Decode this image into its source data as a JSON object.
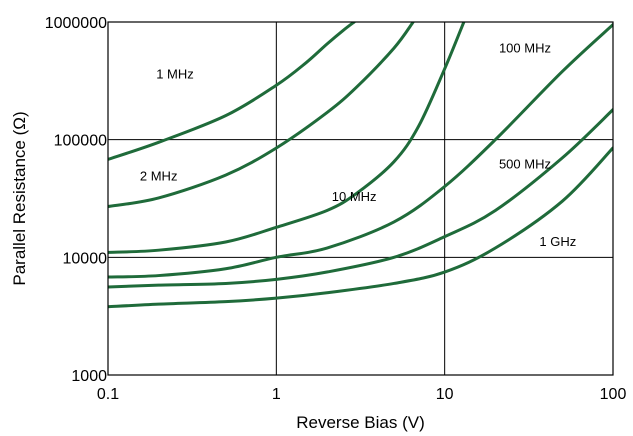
{
  "chart_data": {
    "type": "line",
    "x_scale": "log",
    "y_scale": "log",
    "xlabel": "Reverse Bias (V)",
    "ylabel": "Parallel Resistance (Ω)",
    "xlim": [
      0.1,
      100
    ],
    "ylim": [
      1000,
      1000000
    ],
    "grid": true,
    "line_color": "#1f6b3a",
    "x_ticks": [
      {
        "value": 0.1,
        "label": "0.1"
      },
      {
        "value": 1,
        "label": "1"
      },
      {
        "value": 10,
        "label": "10"
      },
      {
        "value": 100,
        "label": "100"
      }
    ],
    "y_ticks": [
      {
        "value": 1000,
        "label": "1000"
      },
      {
        "value": 10000,
        "label": "10000"
      },
      {
        "value": 100000,
        "label": "100000"
      },
      {
        "value": 1000000,
        "label": "1000000"
      }
    ],
    "series": [
      {
        "name": "1 MHz",
        "label_at": {
          "x": 0.25,
          "y": 330000
        },
        "points": [
          [
            0.1,
            68000
          ],
          [
            0.2,
            95000
          ],
          [
            0.5,
            160000
          ],
          [
            1,
            290000
          ],
          [
            1.5,
            450000
          ],
          [
            2,
            650000
          ],
          [
            2.5,
            850000
          ],
          [
            2.9,
            1000000
          ]
        ]
      },
      {
        "name": "2 MHz",
        "label_at": {
          "x": 0.2,
          "y": 45000
        },
        "points": [
          [
            0.1,
            27000
          ],
          [
            0.2,
            32000
          ],
          [
            0.5,
            50000
          ],
          [
            1,
            85000
          ],
          [
            2,
            170000
          ],
          [
            3,
            280000
          ],
          [
            5,
            600000
          ],
          [
            6.5,
            1000000
          ]
        ]
      },
      {
        "name": "10 MHz",
        "label_at": {
          "x": 2.9,
          "y": 30000
        },
        "points": [
          [
            0.1,
            11000
          ],
          [
            0.2,
            11500
          ],
          [
            0.5,
            13500
          ],
          [
            1,
            18000
          ],
          [
            2,
            25000
          ],
          [
            3,
            35000
          ],
          [
            5,
            65000
          ],
          [
            7,
            130000
          ],
          [
            10,
            400000
          ],
          [
            13,
            1000000
          ]
        ]
      },
      {
        "name": "100 MHz",
        "label_at": {
          "x": 30,
          "y": 550000
        },
        "points": [
          [
            0.1,
            6800
          ],
          [
            0.2,
            7000
          ],
          [
            0.5,
            8000
          ],
          [
            1,
            10000
          ],
          [
            2,
            12000
          ],
          [
            5,
            20000
          ],
          [
            10,
            40000
          ],
          [
            20,
            100000
          ],
          [
            50,
            380000
          ],
          [
            100,
            950000
          ]
        ]
      },
      {
        "name": "500 MHz",
        "label_at": {
          "x": 30,
          "y": 57000
        },
        "points": [
          [
            0.1,
            5600
          ],
          [
            0.2,
            5800
          ],
          [
            0.5,
            6000
          ],
          [
            1,
            6500
          ],
          [
            2,
            7500
          ],
          [
            5,
            10000
          ],
          [
            10,
            15000
          ],
          [
            20,
            25000
          ],
          [
            50,
            70000
          ],
          [
            100,
            180000
          ]
        ]
      },
      {
        "name": "1 GHz",
        "label_at": {
          "x": 47,
          "y": 12500
        },
        "points": [
          [
            0.1,
            3800
          ],
          [
            0.2,
            4000
          ],
          [
            0.5,
            4200
          ],
          [
            1,
            4500
          ],
          [
            2,
            5000
          ],
          [
            5,
            6000
          ],
          [
            10,
            7500
          ],
          [
            20,
            12000
          ],
          [
            50,
            30000
          ],
          [
            100,
            85000
          ]
        ]
      }
    ]
  }
}
